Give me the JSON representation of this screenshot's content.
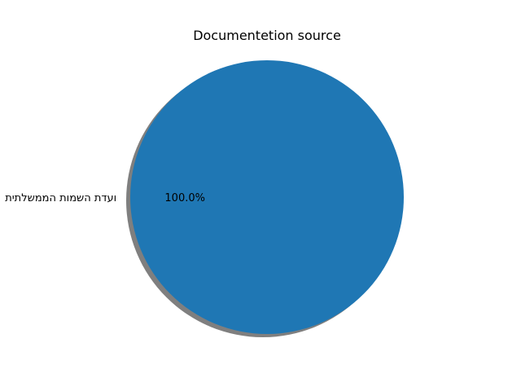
{
  "chart_data": {
    "type": "pie",
    "title": "Documentetion source",
    "slices": [
      {
        "label": "ועדת השמות הממשלתית",
        "value": 100.0,
        "percent_label": "100.0%",
        "color": "#1f77b4"
      }
    ],
    "shadow": true,
    "legend": "none"
  }
}
